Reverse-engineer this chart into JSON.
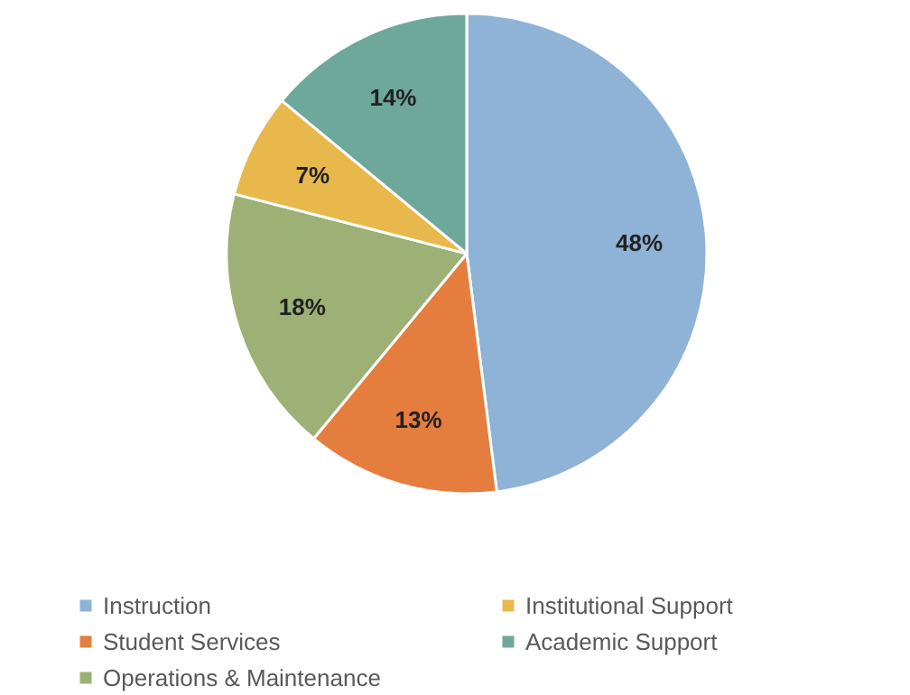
{
  "chart_data": {
    "type": "pie",
    "categories": [
      "Instruction",
      "Student Services",
      "Operations & Maintenance",
      "Institutional Support",
      "Academic Support"
    ],
    "values": [
      48,
      13,
      18,
      7,
      14
    ],
    "value_labels": [
      "48%",
      "13%",
      "18%",
      "7%",
      "14%"
    ],
    "colors": [
      "#8fb3d6",
      "#e47d3e",
      "#9db075",
      "#e8b84c",
      "#6ea89a"
    ],
    "legend": "bottom"
  }
}
